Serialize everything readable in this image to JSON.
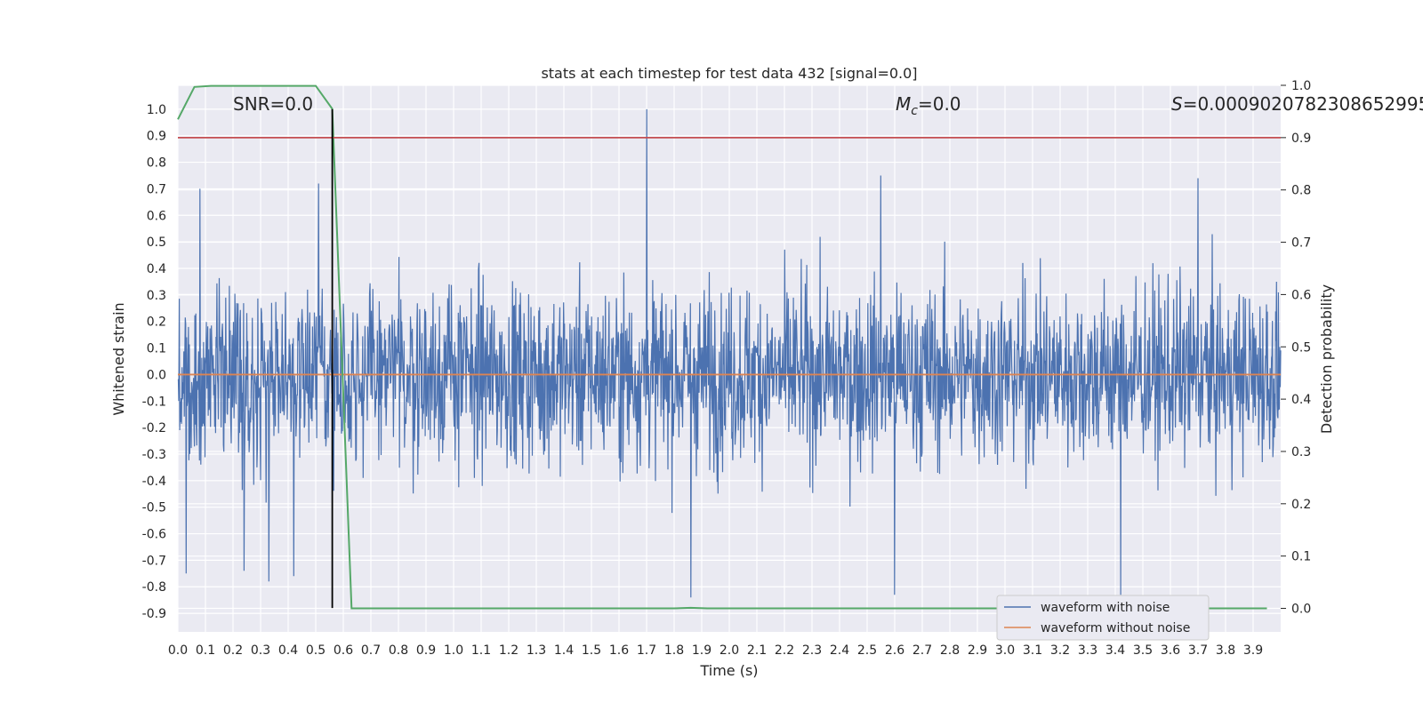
{
  "chart_data": {
    "type": "line",
    "title": "stats at each timestep for test data 432 [signal=0.0]",
    "xlabel": "Time (s)",
    "ylabel_left": "Whitened strain",
    "ylabel_right": "Detection probability",
    "xlim": [
      0.0,
      4.0
    ],
    "ylim_left": [
      -0.97,
      1.09
    ],
    "ylim_right": [
      -0.045,
      1.0
    ],
    "xticks": [
      "0.0",
      "0.1",
      "0.2",
      "0.3",
      "0.4",
      "0.5",
      "0.6",
      "0.7",
      "0.8",
      "0.9",
      "1.0",
      "1.1",
      "1.2",
      "1.3",
      "1.4",
      "1.5",
      "1.6",
      "1.7",
      "1.8",
      "1.9",
      "2.0",
      "2.1",
      "2.2",
      "2.3",
      "2.4",
      "2.5",
      "2.6",
      "2.7",
      "2.8",
      "2.9",
      "3.0",
      "3.1",
      "3.2",
      "3.3",
      "3.4",
      "3.5",
      "3.6",
      "3.7",
      "3.8",
      "3.9"
    ],
    "yticks_left": [
      "1.0",
      "0.9",
      "0.8",
      "0.7",
      "0.6",
      "0.5",
      "0.4",
      "0.3",
      "0.2",
      "0.1",
      "0.0",
      "-0.1",
      "-0.2",
      "-0.3",
      "-0.4",
      "-0.5",
      "-0.6",
      "-0.7",
      "-0.8",
      "-0.9"
    ],
    "yticks_right": [
      "1.0",
      "0.9",
      "0.8",
      "0.7",
      "0.6",
      "0.5",
      "0.4",
      "0.3",
      "0.2",
      "0.1",
      "0.0"
    ],
    "grid": true,
    "annotations": {
      "snr": "SNR=0.0",
      "mc_symbol": "M",
      "mc_sub": "c",
      "mc_value": "=0.0",
      "s_symbol": "S",
      "s_value": "=0.0009020782308652995"
    },
    "series": [
      {
        "name": "waveform with noise",
        "axis": "left",
        "color": "#4c72b0",
        "kind": "noise",
        "x_range": [
          0.0,
          4.0
        ],
        "typical_range": [
          -0.55,
          0.55
        ],
        "spikes": [
          {
            "x": 1.7,
            "y": 1.0
          },
          {
            "x": 0.08,
            "y": 0.7
          },
          {
            "x": 0.51,
            "y": 0.72
          },
          {
            "x": 3.7,
            "y": 0.74
          },
          {
            "x": 2.55,
            "y": 0.75
          },
          {
            "x": 3.42,
            "y": -0.83
          },
          {
            "x": 1.86,
            "y": -0.84
          },
          {
            "x": 2.6,
            "y": -0.83
          },
          {
            "x": 0.03,
            "y": -0.75
          },
          {
            "x": 0.33,
            "y": -0.78
          },
          {
            "x": 0.24,
            "y": -0.74
          },
          {
            "x": 0.42,
            "y": -0.76
          }
        ]
      },
      {
        "name": "waveform without noise",
        "axis": "left",
        "color": "#dd8452",
        "x": [
          0.0,
          4.0
        ],
        "y": [
          0.0,
          0.0
        ]
      },
      {
        "axis": "right",
        "color": "#55a868",
        "x": [
          0.0,
          0.06,
          0.12,
          0.2,
          0.3,
          0.4,
          0.5,
          0.56,
          0.63,
          0.7,
          1.0,
          1.5,
          1.8,
          1.86,
          1.92,
          2.5,
          3.0,
          3.5,
          3.95
        ],
        "y": [
          0.935,
          0.997,
          0.999,
          0.999,
          0.999,
          0.999,
          0.999,
          0.955,
          0.0,
          0.0,
          0.0,
          0.0,
          0.0,
          0.001,
          0.0,
          0.0,
          0.0,
          0.0,
          0.0
        ]
      }
    ],
    "hlines": [
      {
        "axis": "right",
        "y": 0.9,
        "color": "#c44e52"
      }
    ],
    "vlines": [
      {
        "x": 0.56,
        "y_range": [
          -0.88,
          1.0
        ],
        "color": "#000000"
      }
    ],
    "legend": {
      "position": "lower right",
      "entries": [
        {
          "label": "waveform with noise",
          "color": "#4c72b0"
        },
        {
          "label": "waveform without noise",
          "color": "#dd8452"
        }
      ]
    }
  }
}
